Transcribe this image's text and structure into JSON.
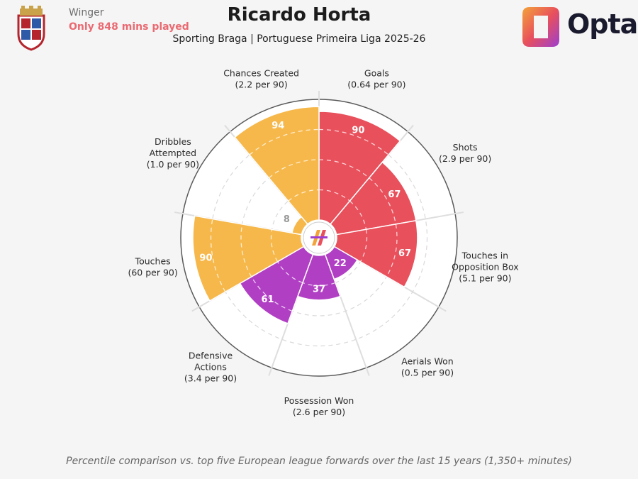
{
  "header": {
    "role": "Winger",
    "minutes_note": "Only 848 mins played",
    "title": "Ricardo Horta",
    "subtitle": "Sporting Braga | Portuguese Primeira Liga 2025-26",
    "brand": "Opta"
  },
  "footer": {
    "note": "Percentile comparison vs. top five European league forwards over the last 15 years (1,350+ minutes)"
  },
  "colors": {
    "attacking": "#e8505c",
    "possession": "#f6b84b",
    "defending": "#b13fc4",
    "background": "#f5f5f5"
  },
  "icons": {
    "club": "sporting-braga-crest",
    "brand": "opta-logo",
    "center": "opta-mark"
  },
  "chart_data": {
    "type": "polar-bar",
    "rmax": 100,
    "rings": [
      25,
      50,
      75
    ],
    "grid": true,
    "categories": [
      {
        "label": [
          "Goals",
          "(0.64 per 90)"
        ],
        "value": 90,
        "group": "attacking"
      },
      {
        "label": [
          "Shots",
          "(2.9 per 90)"
        ],
        "value": 67,
        "group": "attacking"
      },
      {
        "label": [
          "Touches in",
          "Opposition Box",
          "(5.1 per 90)"
        ],
        "value": 67,
        "group": "attacking"
      },
      {
        "label": [
          "Aerials Won",
          "(0.5 per 90)"
        ],
        "value": 22,
        "group": "defending"
      },
      {
        "label": [
          "Possession Won",
          "(2.6 per 90)"
        ],
        "value": 37,
        "group": "defending"
      },
      {
        "label": [
          "Defensive",
          "Actions",
          "(3.4 per 90)"
        ],
        "value": 61,
        "group": "defending"
      },
      {
        "label": [
          "Touches",
          "(60 per 90)"
        ],
        "value": 90,
        "group": "possession"
      },
      {
        "label": [
          "Dribbles",
          "Attempted",
          "(1.0 per 90)"
        ],
        "value": 8,
        "group": "possession"
      },
      {
        "label": [
          "Chances Created",
          "(2.2 per 90)"
        ],
        "value": 94,
        "group": "possession"
      }
    ]
  }
}
